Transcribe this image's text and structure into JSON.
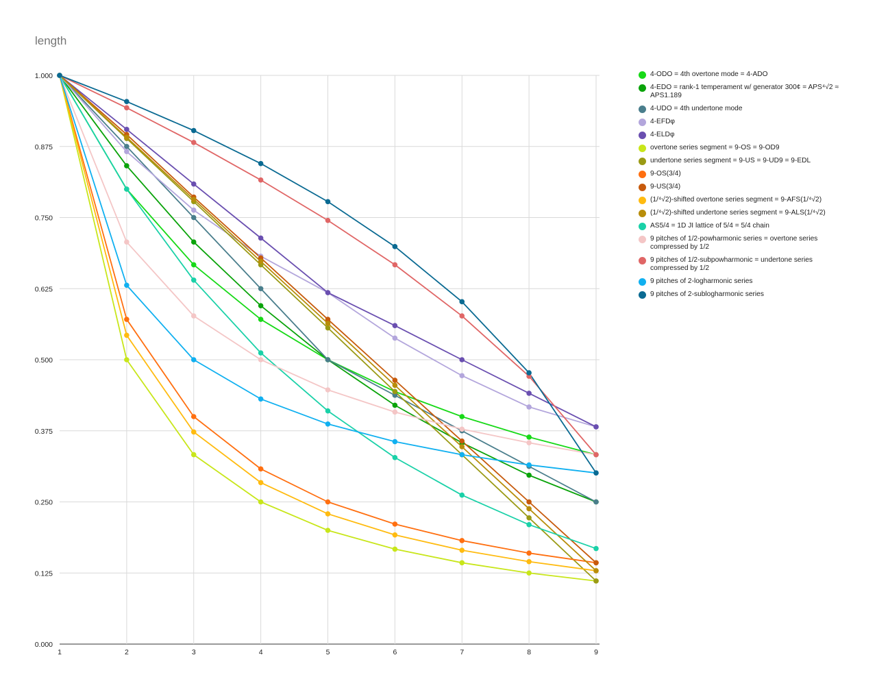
{
  "title": "length",
  "chart_data": {
    "type": "line",
    "title": "length",
    "xlabel": "",
    "ylabel": "",
    "x": [
      1,
      2,
      3,
      4,
      5,
      6,
      7,
      8,
      9
    ],
    "xlim": [
      1,
      9
    ],
    "ylim": [
      0,
      1
    ],
    "yticks": [
      "0.000",
      "0.125",
      "0.250",
      "0.375",
      "0.500",
      "0.625",
      "0.750",
      "0.875",
      "1.000"
    ],
    "xticks": [
      "1",
      "2",
      "3",
      "4",
      "5",
      "6",
      "7",
      "8",
      "9"
    ],
    "grid": true,
    "legend": "right",
    "series": [
      {
        "name": "4-ODO = 4th overtone mode = 4-ADO",
        "color": "#17d917",
        "values": [
          1.0,
          0.8,
          0.667,
          0.571,
          0.5,
          0.444,
          0.4,
          0.364,
          0.333
        ]
      },
      {
        "name": "4-EDO = rank-1 temperament w/ generator 300¢ = APS⁴√2 ≈ APS1.189",
        "color": "#0aa30a",
        "values": [
          1.0,
          0.841,
          0.707,
          0.595,
          0.5,
          0.42,
          0.354,
          0.297,
          0.25
        ]
      },
      {
        "name": "4-UDO = 4th undertone mode",
        "color": "#4a7e8c",
        "values": [
          1.0,
          0.875,
          0.75,
          0.625,
          0.5,
          0.4375,
          0.375,
          0.3125,
          0.25
        ]
      },
      {
        "name": "4-EFDφ",
        "color": "#b3a6dc",
        "values": [
          1.0,
          0.866,
          0.763,
          0.682,
          0.618,
          0.538,
          0.472,
          0.417,
          0.382
        ]
      },
      {
        "name": "4-ELDφ",
        "color": "#6a4fb0",
        "values": [
          1.0,
          0.905,
          0.809,
          0.714,
          0.618,
          0.56,
          0.5,
          0.441,
          0.382
        ]
      },
      {
        "name": "overtone series segment = 9-OS = 9-OD9",
        "color": "#c8e61a",
        "values": [
          1.0,
          0.5,
          0.333,
          0.25,
          0.2,
          0.167,
          0.143,
          0.125,
          0.111
        ]
      },
      {
        "name": "undertone series segment = 9-US = 9-UD9 = 9-EDL",
        "color": "#9a9a14",
        "values": [
          1.0,
          0.889,
          0.778,
          0.667,
          0.556,
          0.444,
          0.333,
          0.222,
          0.111
        ]
      },
      {
        "name": "9-OS(3/4)",
        "color": "#ff6f10",
        "values": [
          1.0,
          0.571,
          0.4,
          0.308,
          0.25,
          0.211,
          0.182,
          0.16,
          0.143
        ]
      },
      {
        "name": "9-US(3/4)",
        "color": "#c75a0c",
        "values": [
          1.0,
          0.896,
          0.786,
          0.679,
          0.571,
          0.464,
          0.357,
          0.25,
          0.143
        ]
      },
      {
        "name": "(1/⁴√2)-shifted overtone series segment = 9-AFS(1/⁴√2)",
        "color": "#ffbb10",
        "values": [
          1.0,
          0.543,
          0.373,
          0.284,
          0.229,
          0.192,
          0.165,
          0.145,
          0.129
        ]
      },
      {
        "name": "(1/⁴√2)-shifted undertone series segment = 9-ALS(1/⁴√2)",
        "color": "#b88d0a",
        "values": [
          1.0,
          0.891,
          0.782,
          0.673,
          0.564,
          0.455,
          0.347,
          0.238,
          0.129
        ]
      },
      {
        "name": "AS5/4 = 1D JI lattice of 5/4 = 5/4 chain",
        "color": "#1ad1a8",
        "values": [
          1.0,
          0.8,
          0.64,
          0.512,
          0.41,
          0.328,
          0.262,
          0.21,
          0.168
        ]
      },
      {
        "name": "9 pitches of 1/2-powharmonic series = overtone series compressed by 1/2",
        "color": "#f4c6c6",
        "values": [
          1.0,
          0.707,
          0.577,
          0.5,
          0.447,
          0.408,
          0.378,
          0.354,
          0.333
        ]
      },
      {
        "name": "9 pitches of 1/2-subpowharmonic = undertone series compressed by 1/2",
        "color": "#e06666",
        "values": [
          1.0,
          0.943,
          0.882,
          0.816,
          0.745,
          0.667,
          0.577,
          0.471,
          0.333
        ]
      },
      {
        "name": "9 pitches of 2-logharmonic series",
        "color": "#10b0f0",
        "values": [
          1.0,
          0.631,
          0.5,
          0.431,
          0.387,
          0.356,
          0.333,
          0.315,
          0.301
        ]
      },
      {
        "name": "9 pitches of 2-sublogharmonic series",
        "color": "#0a6a92",
        "values": [
          1.0,
          0.954,
          0.903,
          0.845,
          0.778,
          0.699,
          0.602,
          0.477,
          0.301
        ]
      }
    ]
  }
}
